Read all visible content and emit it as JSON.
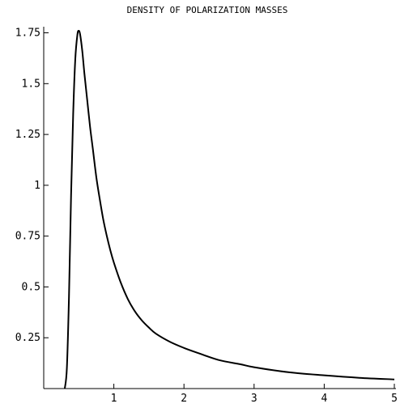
{
  "chart_data": {
    "type": "line",
    "title": "DENSITY OF POLARIZATION MASSES",
    "xlabel": "",
    "ylabel": "",
    "xlim": [
      0,
      5
    ],
    "ylim": [
      0,
      1.78
    ],
    "x_ticks": [
      1,
      2,
      3,
      4,
      5
    ],
    "x_tick_labels": [
      "1",
      "2",
      "3",
      "4",
      "5"
    ],
    "y_ticks": [
      0.25,
      0.5,
      0.75,
      1,
      1.25,
      1.5,
      1.75
    ],
    "y_tick_labels": [
      "0.25",
      "0.5",
      "0.75",
      "1",
      "1.25",
      "1.5",
      "1.75"
    ],
    "grid": false,
    "series": [
      {
        "color": "#000000",
        "x": [
          0.3,
          0.33,
          0.36,
          0.39,
          0.42,
          0.45,
          0.48,
          0.5,
          0.52,
          0.55,
          0.58,
          0.62,
          0.66,
          0.7,
          0.75,
          0.8,
          0.85,
          0.9,
          0.95,
          1.0,
          1.1,
          1.2,
          1.3,
          1.4,
          1.5,
          1.6,
          1.8,
          2.0,
          2.2,
          2.5,
          2.8,
          3.0,
          3.5,
          4.0,
          4.5,
          5.0
        ],
        "y": [
          0.0,
          0.1,
          0.45,
          0.95,
          1.35,
          1.62,
          1.74,
          1.76,
          1.74,
          1.66,
          1.55,
          1.42,
          1.29,
          1.18,
          1.04,
          0.93,
          0.83,
          0.75,
          0.68,
          0.62,
          0.52,
          0.44,
          0.38,
          0.335,
          0.3,
          0.27,
          0.23,
          0.2,
          0.175,
          0.14,
          0.12,
          0.105,
          0.08,
          0.065,
          0.053,
          0.045
        ]
      }
    ]
  }
}
